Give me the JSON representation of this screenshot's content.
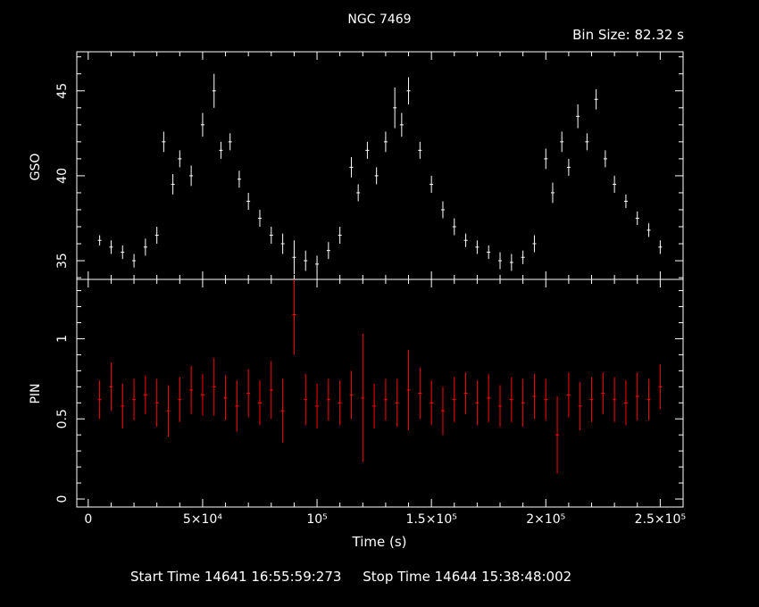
{
  "header": {
    "title": "NGC 7469",
    "bin_size": "Bin Size: 82.32 s"
  },
  "footer": {
    "start_time": "Start Time 14641 16:55:59:273",
    "stop_time": "Stop Time 14644 15:38:48:002"
  },
  "colors": {
    "background": "#000000",
    "axes": "#ffffff",
    "gso_series": "#ffffff",
    "pin_series": "#ff0000"
  },
  "chart_data": [
    {
      "type": "scatter",
      "panel": "top",
      "ylabel": "GSO",
      "xlim": [
        -5000,
        260000
      ],
      "ylim": [
        33.9,
        47.3
      ],
      "yticks": [
        35,
        40,
        45
      ],
      "ytick_labels": [
        "35",
        "40",
        "45"
      ],
      "series": [
        {
          "color": "#ffffff",
          "x": [
            5000,
            10000,
            15000,
            20000,
            25000,
            30000,
            33000,
            37000,
            40000,
            45000,
            50000,
            55000,
            58000,
            62000,
            66000,
            70000,
            75000,
            80000,
            85000,
            90000,
            95000,
            100000,
            105000,
            110000,
            115000,
            118000,
            122000,
            126000,
            130000,
            134000,
            137000,
            140000,
            145000,
            150000,
            155000,
            160000,
            165000,
            170000,
            175000,
            180000,
            185000,
            190000,
            195000,
            200000,
            203000,
            207000,
            210000,
            214000,
            218000,
            222000,
            226000,
            230000,
            235000,
            240000,
            245000,
            250000
          ],
          "y": [
            36.2,
            35.8,
            35.5,
            35.0,
            35.8,
            36.5,
            42.0,
            39.5,
            41.0,
            40.0,
            43.0,
            45.0,
            41.5,
            42.0,
            39.8,
            38.5,
            37.5,
            36.5,
            36.0,
            35.2,
            35.0,
            34.8,
            35.6,
            36.5,
            40.5,
            39.0,
            41.5,
            40.0,
            42.0,
            44.0,
            43.0,
            45.0,
            41.5,
            39.5,
            38.0,
            37.0,
            36.2,
            35.8,
            35.5,
            35.0,
            34.9,
            35.2,
            36.0,
            41.0,
            39.0,
            42.0,
            40.5,
            43.5,
            42.0,
            44.5,
            41.0,
            39.5,
            38.5,
            37.5,
            36.8,
            35.8
          ],
          "yerr": [
            0.3,
            0.4,
            0.4,
            0.4,
            0.5,
            0.5,
            0.6,
            0.6,
            0.5,
            0.6,
            0.7,
            1.0,
            0.5,
            0.5,
            0.5,
            0.5,
            0.5,
            0.5,
            0.6,
            1.0,
            0.6,
            0.5,
            0.5,
            0.5,
            0.6,
            0.5,
            0.5,
            0.5,
            0.6,
            1.2,
            0.7,
            0.8,
            0.5,
            0.5,
            0.5,
            0.5,
            0.4,
            0.4,
            0.4,
            0.5,
            0.5,
            0.4,
            0.5,
            0.6,
            0.6,
            0.6,
            0.5,
            0.7,
            0.5,
            0.6,
            0.5,
            0.5,
            0.4,
            0.4,
            0.4,
            0.4
          ]
        }
      ]
    },
    {
      "type": "scatter",
      "panel": "bottom",
      "xlabel": "Time (s)",
      "ylabel": "PIN",
      "xlim": [
        -5000,
        260000
      ],
      "ylim": [
        -0.05,
        1.37
      ],
      "yticks": [
        0,
        0.5,
        1
      ],
      "ytick_labels": [
        "0",
        "0.5",
        "1"
      ],
      "xticks": [
        0,
        50000,
        100000,
        150000,
        200000,
        250000
      ],
      "xtick_labels": [
        "0",
        "5×10⁴",
        "10⁵",
        "1.5×10⁵",
        "2×10⁵",
        "2.5×10⁵"
      ],
      "series": [
        {
          "color": "#ff0000",
          "x": [
            5000,
            10000,
            15000,
            20000,
            25000,
            30000,
            35000,
            40000,
            45000,
            50000,
            55000,
            60000,
            65000,
            70000,
            75000,
            80000,
            85000,
            90000,
            95000,
            100000,
            105000,
            110000,
            115000,
            120000,
            125000,
            130000,
            135000,
            140000,
            145000,
            150000,
            155000,
            160000,
            165000,
            170000,
            175000,
            180000,
            185000,
            190000,
            195000,
            200000,
            205000,
            210000,
            215000,
            220000,
            225000,
            230000,
            235000,
            240000,
            245000,
            250000
          ],
          "y": [
            0.62,
            0.7,
            0.58,
            0.62,
            0.65,
            0.6,
            0.55,
            0.62,
            0.68,
            0.65,
            0.7,
            0.63,
            0.58,
            0.66,
            0.6,
            0.68,
            0.55,
            1.15,
            0.62,
            0.58,
            0.62,
            0.6,
            0.65,
            0.63,
            0.58,
            0.62,
            0.6,
            0.68,
            0.66,
            0.6,
            0.55,
            0.62,
            0.66,
            0.6,
            0.63,
            0.58,
            0.62,
            0.6,
            0.64,
            0.62,
            0.4,
            0.65,
            0.58,
            0.62,
            0.66,
            0.62,
            0.6,
            0.64,
            0.62,
            0.7
          ],
          "yerr": [
            0.12,
            0.15,
            0.14,
            0.13,
            0.12,
            0.15,
            0.16,
            0.14,
            0.15,
            0.13,
            0.18,
            0.14,
            0.16,
            0.15,
            0.14,
            0.18,
            0.2,
            0.25,
            0.16,
            0.14,
            0.13,
            0.14,
            0.15,
            0.4,
            0.14,
            0.13,
            0.15,
            0.25,
            0.16,
            0.14,
            0.15,
            0.14,
            0.13,
            0.14,
            0.15,
            0.13,
            0.14,
            0.15,
            0.14,
            0.13,
            0.24,
            0.14,
            0.15,
            0.14,
            0.13,
            0.14,
            0.14,
            0.15,
            0.13,
            0.14
          ]
        }
      ]
    }
  ]
}
